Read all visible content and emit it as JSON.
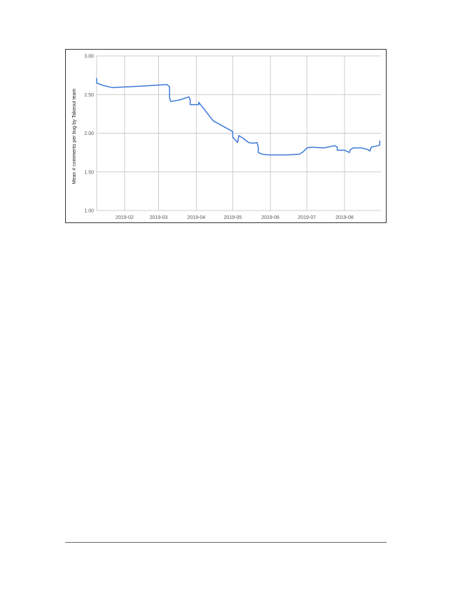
{
  "chart_data": {
    "type": "line",
    "title": "",
    "xlabel": "",
    "ylabel": "Mean # comments per bug by Takeout team",
    "ylim": [
      1.0,
      3.0
    ],
    "xlim": [
      "2019-01-09",
      "2019-08-31"
    ],
    "y_ticks": [
      "1.00",
      "1.50",
      "2.00",
      "2.50",
      "3.00"
    ],
    "y_tick_values": [
      1.0,
      1.5,
      2.0,
      2.5,
      3.0
    ],
    "x_ticks": [
      "2019-02",
      "2019-03",
      "2019-04",
      "2019-05",
      "2019-06",
      "2019-07",
      "2019-08"
    ],
    "x_tick_values": [
      "2019-02-01",
      "2019-03-01",
      "2019-04-01",
      "2019-05-01",
      "2019-06-01",
      "2019-07-01",
      "2019-08-01"
    ],
    "grid": true,
    "line_color": "#3c78d8",
    "series": [
      {
        "points": [
          [
            "2019-01-09",
            2.71
          ],
          [
            "2019-01-09",
            2.65
          ],
          [
            "2019-01-14",
            2.62
          ],
          [
            "2019-01-22",
            2.59
          ],
          [
            "2019-02-15",
            2.61
          ],
          [
            "2019-03-08",
            2.63
          ],
          [
            "2019-03-10",
            2.6
          ],
          [
            "2019-03-10",
            2.46
          ],
          [
            "2019-03-11",
            2.41
          ],
          [
            "2019-03-18",
            2.43
          ],
          [
            "2019-03-26",
            2.47
          ],
          [
            "2019-03-27",
            2.43
          ],
          [
            "2019-03-27",
            2.37
          ],
          [
            "2019-04-01",
            2.37
          ],
          [
            "2019-04-03",
            2.37
          ],
          [
            "2019-04-03",
            2.4
          ],
          [
            "2019-04-05",
            2.36
          ],
          [
            "2019-04-08",
            2.3
          ],
          [
            "2019-04-15",
            2.16
          ],
          [
            "2019-04-22",
            2.1
          ],
          [
            "2019-04-30",
            2.03
          ],
          [
            "2019-05-01",
            2.02
          ],
          [
            "2019-05-01",
            1.95
          ],
          [
            "2019-05-05",
            1.88
          ],
          [
            "2019-05-06",
            1.97
          ],
          [
            "2019-05-10",
            1.93
          ],
          [
            "2019-05-14",
            1.88
          ],
          [
            "2019-05-18",
            1.87
          ],
          [
            "2019-05-21",
            1.88
          ],
          [
            "2019-05-22",
            1.82
          ],
          [
            "2019-05-22",
            1.75
          ],
          [
            "2019-05-25",
            1.73
          ],
          [
            "2019-05-30",
            1.72
          ],
          [
            "2019-06-15",
            1.72
          ],
          [
            "2019-06-25",
            1.73
          ],
          [
            "2019-06-28",
            1.76
          ],
          [
            "2019-07-01",
            1.81
          ],
          [
            "2019-07-05",
            1.82
          ],
          [
            "2019-07-15",
            1.81
          ],
          [
            "2019-07-24",
            1.84
          ],
          [
            "2019-07-26",
            1.82
          ],
          [
            "2019-07-26",
            1.78
          ],
          [
            "2019-08-01",
            1.78
          ],
          [
            "2019-08-04",
            1.76
          ],
          [
            "2019-08-05",
            1.75
          ],
          [
            "2019-08-06",
            1.79
          ],
          [
            "2019-08-08",
            1.81
          ],
          [
            "2019-08-15",
            1.81
          ],
          [
            "2019-08-20",
            1.79
          ],
          [
            "2019-08-22",
            1.77
          ],
          [
            "2019-08-23",
            1.82
          ],
          [
            "2019-08-29",
            1.84
          ],
          [
            "2019-08-30",
            1.85
          ],
          [
            "2019-08-30",
            1.9
          ]
        ]
      }
    ]
  }
}
